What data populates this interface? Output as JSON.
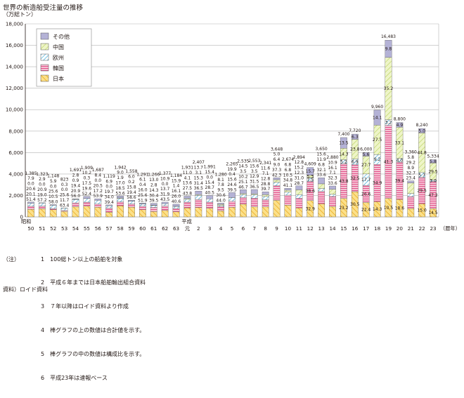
{
  "chart_data": {
    "type": "bar",
    "title": "世界の新造船受注量の推移",
    "ylabel": "（万総トン）",
    "ylim": [
      0,
      18000
    ],
    "yticks": [
      "0",
      "2,000",
      "4,000",
      "6,000",
      "8,000",
      "10,000",
      "12,000",
      "14,000",
      "16,000",
      "18,000"
    ],
    "era_labels": [
      "昭和",
      "平成"
    ],
    "x_suffix": "（暦年）",
    "categories": [
      "50",
      "51",
      "52",
      "53",
      "54",
      "55",
      "56",
      "57",
      "58",
      "59",
      "60",
      "61",
      "62",
      "63",
      "元",
      "2",
      "3",
      "4",
      "5",
      "6",
      "7",
      "8",
      "9",
      "10",
      "11",
      "12",
      "13",
      "14",
      "15",
      "16",
      "17",
      "18",
      "19",
      "20",
      "21",
      "22",
      "23"
    ],
    "totals": [
      1385,
      1323,
      1148,
      823,
      1691,
      1909,
      1687,
      1119,
      1942,
      1558,
      1291,
      1266,
      1377,
      1184,
      1931,
      2407,
      1991,
      1280,
      2265,
      2535,
      2553,
      2341,
      3648,
      2674,
      2894,
      4609,
      3650,
      2880,
      7400,
      7720,
      6000,
      9960,
      16483,
      8800,
      3360,
      8240,
      5334
    ],
    "total_labels": [
      "1,385",
      "1,323",
      "1,148",
      "823",
      "1,691",
      "1,909",
      "1,687",
      "1,119",
      "1,942",
      "1,558",
      "1,291",
      "1,266",
      "1,377",
      "1,184",
      "1,931",
      "2,407",
      "1,991",
      "1,280",
      "2,265",
      "2,535",
      "2,553",
      "2,341",
      "3,648",
      "2,674",
      "2,894",
      "4,609",
      "3,650",
      "2,880",
      "7,400",
      "7,720",
      "6,000",
      "9,960",
      "16,483",
      "8,800",
      "3,360",
      "8,240",
      "5,334"
    ],
    "legend": [
      "その他",
      "中国",
      "欧州",
      "韓国",
      "日本"
    ],
    "series": [
      {
        "name": "日本",
        "values": [
          51.4,
          57.2,
          58.0,
          63.4,
          56.0,
          52.4,
          53.9,
          39.4,
          53.6,
          58.6,
          51.9,
          39.5,
          43.5,
          40.6,
          43.8,
          36.5,
          40.5,
          44.0,
          39.5,
          46.7,
          36.5,
          39.7,
          42.3,
          41.1,
          28.7,
          32.9,
          33.6,
          33.6,
          23.2,
          30.5,
          22.4,
          14.3,
          10.5,
          18.6,
          23.4,
          15.0,
          14.5
        ],
        "labels": [
          "51.4",
          "57.2",
          "58.0",
          "63.4",
          "56.0",
          "52.4",
          "53.9",
          "39.4",
          "53.6",
          "58.6",
          "51.9",
          "39.5",
          "43.5",
          "40.6",
          "43.8",
          "36.5",
          "40.5",
          "44.0",
          "39.5",
          "46.7",
          "36.5",
          "39.7",
          "42.3",
          "41.1",
          "28.7",
          "32.9",
          "33.6",
          "33.6",
          "23.2",
          "30.5",
          "22.4",
          "14.3",
          "10.5",
          "18.6",
          "23.4",
          "15.0",
          "14.5"
        ]
      },
      {
        "name": "韓国",
        "values": [
          20.1,
          19.0,
          10.5,
          11.7,
          20.9,
          19.6,
          17.2,
          34.0,
          18.5,
          19.4,
          25.6,
          30.4,
          31.9,
          26.0,
          27.5,
          31.4,
          28.7,
          30.6,
          24.6,
          25.1,
          31.5,
          28.8,
          37.3,
          34.8,
          31.0,
          38.6,
          32.1,
          32.3,
          43.8,
          32.5,
          26.6,
          34.9,
          41.3,
          39.4,
          32.7,
          29.5,
          47.2
        ],
        "labels": [
          "20.1",
          "19.0",
          "10.5",
          "11.7",
          "20.9",
          "19.6",
          "17.2",
          "34.0",
          "18.5",
          "19.4",
          "25.6",
          "30.4",
          "31.9",
          "26.0",
          "27.5",
          "31.4",
          "28.7",
          "30.6",
          "24.6",
          "25.1",
          "31.5",
          "28.8",
          "37.3",
          "34.8",
          "31.0",
          "38.6",
          "32.1",
          "32.3",
          "43.8",
          "32.5",
          "26.6",
          "34.9",
          "41.3",
          "39.4",
          "32.7",
          "29.5",
          "47.2"
        ]
      },
      {
        "name": "欧州",
        "values": [
          20.6,
          20.9,
          25.6,
          25.6,
          19.4,
          17.5,
          20.5,
          19.7,
          17.0,
          15.8,
          16.0,
          14.3,
          13.7,
          16.1,
          13.6,
          15.3,
          15.4,
          9.5,
          15.6,
          10.2,
          12.9,
          12.8,
          9.0,
          10.5,
          12.3,
          7.5,
          6.8,
          7.1,
          5.2,
          6.9,
          17.7,
          9.2,
          3.2,
          4.0,
          8.9,
          5.7,
          3.0
        ],
        "labels": [
          "20.6",
          "20.9",
          "25.6",
          "25.6",
          "19.4",
          "17.5",
          "20.5",
          "19.7",
          "17.0",
          "15.8",
          "16.0",
          "14.3",
          "13.7",
          "16.1",
          "13.6",
          "15.3",
          "15.4",
          "9.5",
          "15.6",
          "10.2",
          "12.9",
          "12.8",
          "9.0",
          "10.5",
          "12.3",
          "7.5",
          "6.8",
          "7.1",
          "5.2",
          "6.9",
          "17.7",
          "9.2",
          "3.2",
          "4.0",
          "8.9",
          "5.7",
          "3.0"
        ]
      },
      {
        "name": "中国",
        "values": [
          0.0,
          0.0,
          0.0,
          0.0,
          0.9,
          0.3,
          0.0,
          0.0,
          1.9,
          0.2,
          0.4,
          2.8,
          0.0,
          1.4,
          4.1,
          3.1,
          0.0,
          7.8,
          0.4,
          3.5,
          3.5,
          7.1,
          6.4,
          6.8,
          15.2,
          5.3,
          11.9,
          16.1,
          14.3,
          23.8,
          27.7,
          27.5,
          35.2,
          33.1,
          29.2,
          44.8,
          29.5
        ],
        "labels": [
          "0.0",
          "0.0",
          "0.0",
          "0.0",
          "0.9",
          "0.3",
          "0.0",
          "0.0",
          "1.9",
          "0.2",
          "0.4",
          "2.8",
          "0.0",
          "1.4",
          "4.1",
          "3.1",
          "0.0",
          "7.8",
          "0.4",
          "3.5",
          "3.5",
          "7.1",
          "6.4",
          "6.8",
          "15.2",
          "5.3",
          "11.9",
          "16.1",
          "14.3",
          "23.8",
          "27.7",
          "27.5",
          "35.2",
          "33.1",
          "29.2",
          "44.8",
          "29.5"
        ]
      },
      {
        "name": "その他",
        "values": [
          7.9,
          2.9,
          5.9,
          0.3,
          2.8,
          10.2,
          8.4,
          6.9,
          9.0,
          6.0,
          6.1,
          13.0,
          10.9,
          15.9,
          11.0,
          13.7,
          15.4,
          8.1,
          19.9,
          14.5,
          15.6,
          11.6,
          5.0,
          6.8,
          12.8,
          15.7,
          15.6,
          10.9,
          13.5,
          6.3,
          5.6,
          14.1,
          9.8,
          4.9,
          5.8,
          5.0,
          5.8
        ],
        "labels": [
          "7.9",
          "2.9",
          "5.9",
          "0.3",
          "2.8",
          "10.2",
          "8.4",
          "6.9",
          "9.0",
          "6.0",
          "6.1",
          "13.0",
          "10.9",
          "15.9",
          "11.0",
          "13.7",
          "15.4",
          "8.1",
          "19.9",
          "14.5",
          "15.6",
          "11.6",
          "5.0",
          "6.8",
          "12.8",
          "15.7",
          "15.6",
          "10.9",
          "13.5",
          "6.3",
          "5.6",
          "14.1",
          "9.8",
          "4.9",
          "5.8",
          "5.0",
          "5.8"
        ]
      }
    ],
    "legend_placement": "top-left",
    "grid": true
  },
  "notes": {
    "label": "（注）",
    "items": [
      "1　100総トン以上の船舶を対象",
      "2　平成６年までは日本船舶輸出組合資料",
      "3　７年以降はロイド資料より作成",
      "4　棒グラフの上の数値は合計値を示す。",
      "5　棒グラフの中の数値は構成比を示す。",
      "6　平成23年は速報ベース"
    ]
  },
  "source": "資料）ロイド資料",
  "colors": {
    "japan_fill": "#fbe08a",
    "japan_line": "#eaa514",
    "korea_fill": "#f7c6d7",
    "korea_line": "#e2538a",
    "europe_line": "#35a6d6",
    "china_fill": "#eef5c8",
    "china_line": "#b8cf5a",
    "other_fill": "#b4b2d6",
    "grid": "#b5b5b5"
  }
}
